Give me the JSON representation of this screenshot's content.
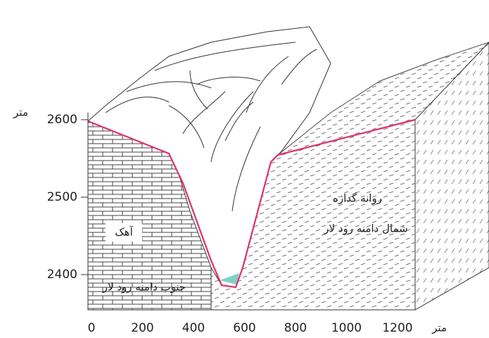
{
  "y_axis": {
    "unit": "متر",
    "ticks": [
      2400,
      2500,
      2600
    ]
  },
  "x_axis": {
    "unit": "متر",
    "ticks": [
      0,
      200,
      400,
      600,
      800,
      1000,
      1200
    ]
  },
  "labels": {
    "limestone": "آهک",
    "south": "جنوب دامنه رود لار",
    "lava": "روانه گدازه",
    "north": "شمال دامنه رود لار"
  }
}
